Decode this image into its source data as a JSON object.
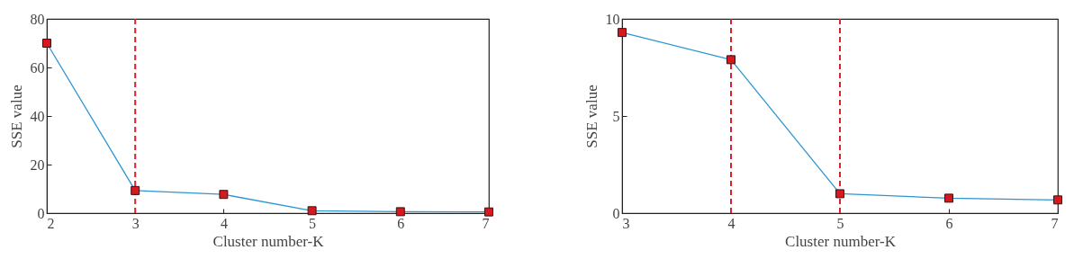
{
  "chart_data": [
    {
      "type": "line",
      "xlabel": "Cluster number-K",
      "ylabel": "SSE value",
      "x": [
        2,
        3,
        4,
        5,
        6,
        7
      ],
      "xlim": [
        2,
        7
      ],
      "xticks": [
        2,
        3,
        4,
        5,
        6,
        7
      ],
      "ylim": [
        0,
        80
      ],
      "yticks": [
        0,
        20,
        40,
        60,
        80
      ],
      "marker": "square",
      "line_style": "solid",
      "series": [
        {
          "color": "#2b95d3",
          "values": [
            70,
            9.3,
            7.7,
            1,
            0.6,
            0.5
          ]
        }
      ],
      "ref_lines": [
        {
          "axis": "x",
          "value": 3,
          "color": "#e0202a",
          "line_style": "dashed"
        }
      ]
    },
    {
      "type": "line",
      "xlabel": "Cluster number-K",
      "ylabel": "SSE value",
      "x": [
        3,
        4,
        5,
        6,
        7
      ],
      "xlim": [
        3,
        7
      ],
      "xticks": [
        3,
        4,
        5,
        6,
        7
      ],
      "ylim": [
        0,
        10
      ],
      "yticks": [
        0,
        5,
        10
      ],
      "marker": "square",
      "line_style": "solid",
      "series": [
        {
          "color": "#2b95d3",
          "values": [
            9.3,
            7.9,
            1,
            0.77,
            0.68
          ]
        }
      ],
      "ref_lines": [
        {
          "axis": "x",
          "value": 4,
          "color": "#e0202a",
          "line_style": "dashed"
        },
        {
          "axis": "x",
          "value": 5,
          "color": "#e0202a",
          "line_style": "dashed"
        }
      ]
    }
  ]
}
